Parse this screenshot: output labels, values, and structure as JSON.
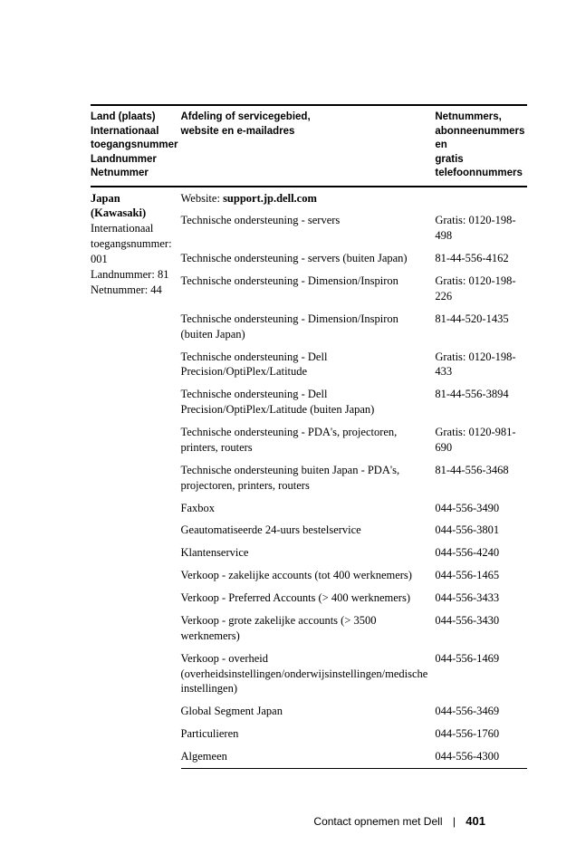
{
  "header": {
    "col1_lines": [
      "Land (plaats) Internationaal",
      "toegangsnummer",
      "Landnummer",
      "Netnummer"
    ],
    "col2_lines": [
      "Afdeling of servicegebied,",
      "website en e-mailadres"
    ],
    "col3_lines": [
      "Netnummers,",
      "abonneenummers en",
      "gratis telefoonnummers"
    ]
  },
  "country": {
    "location": "Japan (Kawasaki)",
    "intl_label": "Internationaal",
    "intl_value": "toegangsnummer: 001",
    "country_code": "Landnummer: 81",
    "city_code": "Netnummer: 44"
  },
  "website_label": "Website: ",
  "website_value": "support.jp.dell.com",
  "rows": [
    {
      "dept": "Technische ondersteuning - servers",
      "num": "Gratis: 0120-198-498"
    },
    {
      "dept": "Technische ondersteuning - servers (buiten Japan)",
      "num": "81-44-556-4162"
    },
    {
      "dept": "Technische ondersteuning - Dimension/Inspiron",
      "num": "Gratis: 0120-198-226"
    },
    {
      "dept": "Technische ondersteuning - Dimension/Inspiron (buiten Japan)",
      "num": "81-44-520-1435"
    },
    {
      "dept": "Technische ondersteuning - Dell Precision/OptiPlex/Latitude",
      "num": "Gratis: 0120-198-433"
    },
    {
      "dept": "Technische ondersteuning - Dell Precision/OptiPlex/Latitude (buiten Japan)",
      "num": "81-44-556-3894"
    },
    {
      "dept": "Technische ondersteuning - PDA's, projectoren, printers, routers",
      "num": "Gratis: 0120-981-690"
    },
    {
      "dept": "Technische ondersteuning buiten Japan - PDA's, projectoren, printers, routers",
      "num": "81-44-556-3468"
    },
    {
      "dept": "Faxbox",
      "num": "044-556-3490"
    },
    {
      "dept": "Geautomatiseerde 24-uurs bestelservice",
      "num": "044-556-3801"
    },
    {
      "dept": "Klantenservice",
      "num": "044-556-4240"
    },
    {
      "dept": "Verkoop - zakelijke accounts (tot 400 werknemers)",
      "num": "044-556-1465"
    },
    {
      "dept": "Verkoop - Preferred Accounts (> 400 werknemers)",
      "num": "044-556-3433"
    },
    {
      "dept": "Verkoop - grote zakelijke accounts (> 3500 werknemers)",
      "num": "044-556-3430"
    },
    {
      "dept": "Verkoop - overheid (overheidsinstellingen/onderwijsinstellingen/medische instellingen)",
      "num": "044-556-1469"
    },
    {
      "dept": "Global Segment Japan",
      "num": "044-556-3469"
    },
    {
      "dept": "Particulieren",
      "num": "044-556-1760"
    },
    {
      "dept": "Algemeen",
      "num": "044-556-4300"
    }
  ],
  "footer": {
    "section": "Contact opnemen met Dell",
    "page": "401"
  }
}
